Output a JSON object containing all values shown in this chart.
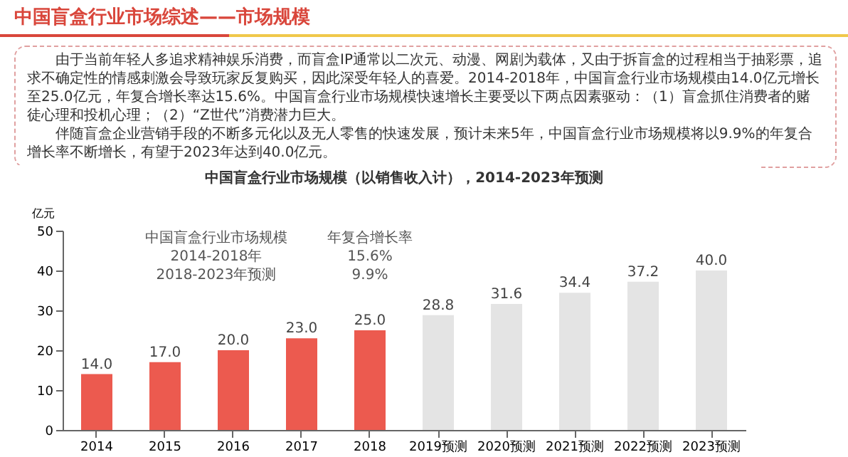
{
  "chart_data": {
    "type": "bar",
    "title": "中国盲盒行业市场规模（以销售收入计），2014-2023年预测",
    "ylabel": "亿元",
    "categories": [
      "2014",
      "2015",
      "2016",
      "2017",
      "2018",
      "2019预测",
      "2020预测",
      "2021预测",
      "2022预测",
      "2023预测"
    ],
    "values": [
      14.0,
      17.0,
      20.0,
      23.0,
      25.0,
      28.8,
      31.6,
      34.4,
      37.2,
      40.0
    ],
    "colors": [
      "#ec5a4f",
      "#ec5a4f",
      "#ec5a4f",
      "#ec5a4f",
      "#ec5a4f",
      "#e4e4e4",
      "#e4e4e4",
      "#e4e4e4",
      "#e4e4e4",
      "#e4e4e4"
    ],
    "value_labels": [
      "14.0",
      "17.0",
      "20.0",
      "23.0",
      "25.0",
      "28.8",
      "31.6",
      "34.4",
      "37.2",
      "40.0"
    ],
    "ylim": [
      0,
      50
    ],
    "yticks": [
      0,
      10,
      20,
      30,
      40,
      50
    ],
    "grid": false,
    "annotations": [
      "中国盲盒行业市场综述——市场规模",
      "由于当前年轻人多追求精神娱乐消费，而盲盒IP通常以二次元、动漫、网剧为载体，又由于拆盲盒的过程相当于抽彩票，追求不确定性的情感刺激会导致玩家反复购买，因此深受年轻人的喜爱。2014-2018年，中国盲盒行业市场规模由14.0亿元增长至25.0亿元，年复合增长率达15.6%。中国盲盒行业市场规模快速增长主要受以下两点因素驱动：（1）盲盒抓住消费者的赌徒心理和投机心理；（2）“Z世代”消费潜力巨大。",
      "伴随盲盒企业营销手段的不断多元化以及无人零售的快速发展，预计未来5年，中国盲盒行业市场规模将以9.9%的年复合增长率不断增长，有望于2023年达到40.0亿元。",
      "中国盲盒行业市场规模",
      "年复合增长率",
      "2014-2018年",
      "15.6%",
      "2018-2023年预测",
      "9.9%"
    ]
  }
}
